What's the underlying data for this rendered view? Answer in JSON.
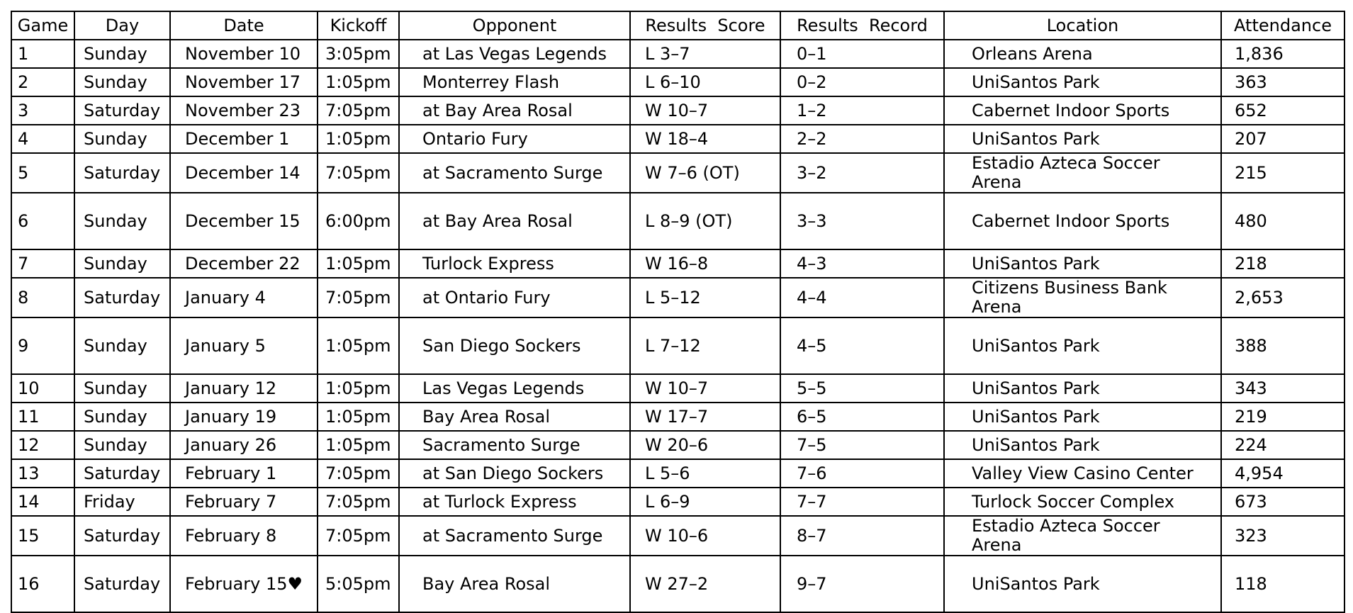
{
  "headers": [
    "Game",
    "Day",
    "Date",
    "Kickoff",
    "Opponent",
    "Results  Score",
    "Results  Record",
    "Location",
    "Attendance"
  ],
  "rows": [
    {
      "game": "1",
      "day": "Sunday",
      "date": "November 10",
      "kickoff": "3:05pm",
      "opponent": "at Las Vegas Legends",
      "score": "L 3–7",
      "record": "0–1",
      "location": "Orleans Arena",
      "attendance": "1,836",
      "tall": false
    },
    {
      "game": "2",
      "day": "Sunday",
      "date": "November 17",
      "kickoff": "1:05pm",
      "opponent": "Monterrey Flash",
      "score": "L 6–10",
      "record": "0–2",
      "location": "UniSantos Park",
      "attendance": "363",
      "tall": false
    },
    {
      "game": "3",
      "day": "Saturday",
      "date": "November 23",
      "kickoff": "7:05pm",
      "opponent": "at Bay Area Rosal",
      "score": "W 10–7",
      "record": "1–2",
      "location": "Cabernet Indoor Sports",
      "attendance": "652",
      "tall": false
    },
    {
      "game": "4",
      "day": "Sunday",
      "date": "December 1",
      "kickoff": "1:05pm",
      "opponent": "Ontario Fury",
      "score": "W 18–4",
      "record": "2–2",
      "location": "UniSantos Park",
      "attendance": "207",
      "tall": false
    },
    {
      "game": "5",
      "day": "Saturday",
      "date": "December 14",
      "kickoff": "7:05pm",
      "opponent": "at Sacramento Surge",
      "score": "W 7–6 (OT)",
      "record": "3–2",
      "location": "Estadio Azteca Soccer Arena",
      "attendance": "215",
      "tall": false
    },
    {
      "game": "6",
      "day": "Sunday",
      "date": "December 15",
      "kickoff": "6:00pm",
      "opponent": "at Bay Area Rosal",
      "score": "L 8–9 (OT)",
      "record": "3–3",
      "location": "Cabernet Indoor Sports",
      "attendance": "480",
      "tall": true
    },
    {
      "game": "7",
      "day": "Sunday",
      "date": "December 22",
      "kickoff": "1:05pm",
      "opponent": "Turlock Express",
      "score": "W 16–8",
      "record": "4–3",
      "location": "UniSantos Park",
      "attendance": "218",
      "tall": false
    },
    {
      "game": "8",
      "day": "Saturday",
      "date": "January 4",
      "kickoff": "7:05pm",
      "opponent": "at Ontario Fury",
      "score": "L 5–12",
      "record": "4–4",
      "location": "Citizens Business Bank Arena",
      "attendance": "2,653",
      "tall": false
    },
    {
      "game": "9",
      "day": "Sunday",
      "date": "January 5",
      "kickoff": "1:05pm",
      "opponent": "San Diego Sockers",
      "score": "L 7–12",
      "record": "4–5",
      "location": "UniSantos Park",
      "attendance": "388",
      "tall": true
    },
    {
      "game": "10",
      "day": "Sunday",
      "date": "January 12",
      "kickoff": "1:05pm",
      "opponent": "Las Vegas Legends",
      "score": "W 10–7",
      "record": "5–5",
      "location": "UniSantos Park",
      "attendance": "343",
      "tall": false
    },
    {
      "game": "11",
      "day": "Sunday",
      "date": "January 19",
      "kickoff": "1:05pm",
      "opponent": "Bay Area Rosal",
      "score": "W 17–7",
      "record": "6–5",
      "location": "UniSantos Park",
      "attendance": "219",
      "tall": false
    },
    {
      "game": "12",
      "day": "Sunday",
      "date": "January 26",
      "kickoff": "1:05pm",
      "opponent": "Sacramento Surge",
      "score": "W 20–6",
      "record": "7–5",
      "location": "UniSantos Park",
      "attendance": "224",
      "tall": false
    },
    {
      "game": "13",
      "day": "Saturday",
      "date": "February 1",
      "kickoff": "7:05pm",
      "opponent": "at San Diego Sockers",
      "score": "L 5–6",
      "record": "7–6",
      "location": "Valley View Casino Center",
      "attendance": "4,954",
      "tall": false
    },
    {
      "game": "14",
      "day": "Friday",
      "date": "February 7",
      "kickoff": "7:05pm",
      "opponent": "at Turlock Express",
      "score": "L 6–9",
      "record": "7–7",
      "location": "Turlock Soccer Complex",
      "attendance": "673",
      "tall": false
    },
    {
      "game": "15",
      "day": "Saturday",
      "date": "February 8",
      "kickoff": "7:05pm",
      "opponent": "at Sacramento Surge",
      "score": "W 10–6",
      "record": "8–7",
      "location": "Estadio Azteca Soccer Arena",
      "attendance": "323",
      "tall": false
    },
    {
      "game": "16",
      "day": "Saturday",
      "date": "February 15♥",
      "kickoff": "5:05pm",
      "opponent": "Bay Area Rosal",
      "score": "W 27–2",
      "record": "9–7",
      "location": "UniSantos Park",
      "attendance": "118",
      "tall": true
    }
  ]
}
